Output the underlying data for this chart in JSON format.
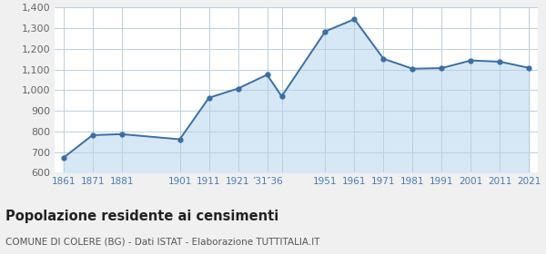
{
  "years": [
    1861,
    1871,
    1881,
    1901,
    1911,
    1921,
    1931,
    1936,
    1951,
    1961,
    1971,
    1981,
    1991,
    2001,
    2011,
    2021
  ],
  "population": [
    672,
    782,
    787,
    762,
    963,
    1008,
    1075,
    970,
    1285,
    1344,
    1152,
    1104,
    1107,
    1144,
    1138,
    1108
  ],
  "ylim": [
    600,
    1400
  ],
  "yticks": [
    600,
    700,
    800,
    900,
    1000,
    1100,
    1200,
    1300,
    1400
  ],
  "line_color": "#3A6EA5",
  "fill_color": "#D6E8F5",
  "marker_color": "#3A6EA5",
  "grid_color": "#BBCFE0",
  "bg_color": "#F0F0F0",
  "plot_bg_color": "#FFFFFF",
  "title": "Popolazione residente ai censimenti",
  "subtitle": "COMUNE DI COLERE (BG) - Dati ISTAT - Elaborazione TUTTITALIA.IT",
  "title_fontsize": 10.5,
  "subtitle_fontsize": 7.5,
  "xtick_color": "#4A7AB5",
  "ytick_color": "#666666"
}
